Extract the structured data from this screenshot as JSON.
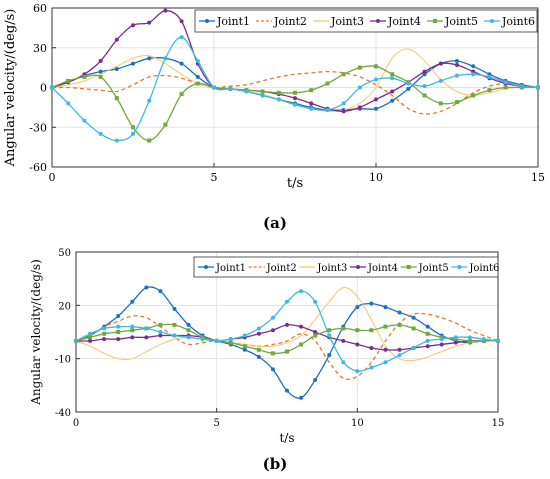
{
  "chart_data": [
    {
      "type": "line",
      "panel_label": "(a)",
      "xlabel": "t/s",
      "ylabel": "Angular velocity/(deg/s)",
      "xlim": [
        0,
        15
      ],
      "ylim": [
        -60,
        60
      ],
      "xticks": [
        0,
        5,
        10,
        15
      ],
      "yticks": [
        -60,
        -30,
        0,
        30,
        60
      ],
      "grid": true,
      "legend": "top-right, horizontal",
      "x": [
        0,
        0.5,
        1,
        1.5,
        2,
        2.5,
        3,
        3.5,
        4,
        4.5,
        5,
        5.5,
        6,
        6.5,
        7,
        7.5,
        8,
        8.5,
        9,
        9.5,
        10,
        10.5,
        11,
        11.5,
        12,
        12.5,
        13,
        13.5,
        14,
        14.5,
        15
      ],
      "series": [
        {
          "name": "Joint1",
          "color": "#1f6fbf",
          "style": "solid-dots",
          "values": [
            0,
            4,
            9,
            12,
            14,
            18,
            22,
            22,
            18,
            8,
            0,
            -1,
            -3,
            -6,
            -9,
            -12,
            -15,
            -17,
            -17,
            -16,
            -16,
            -10,
            -1,
            10,
            18,
            20,
            16,
            10,
            5,
            2,
            0
          ]
        },
        {
          "name": "Joint2",
          "color": "#e8772e",
          "style": "dashed",
          "values": [
            0,
            0,
            -1,
            -2,
            -3,
            2,
            8,
            9,
            7,
            3,
            0,
            1,
            2,
            5,
            8,
            10,
            11,
            12,
            11,
            8,
            2,
            -6,
            -16,
            -20,
            -18,
            -12,
            -4,
            1,
            3,
            1,
            0
          ]
        },
        {
          "name": "Joint3",
          "color": "#f7c66b",
          "style": "solid-thin",
          "values": [
            0,
            2,
            5,
            10,
            16,
            22,
            24,
            18,
            10,
            3,
            0,
            -1,
            -3,
            -5,
            -9,
            -13,
            -16,
            -18,
            -17,
            -12,
            0,
            22,
            29,
            20,
            6,
            -3,
            -6,
            -4,
            -1,
            0,
            0
          ]
        },
        {
          "name": "Joint4",
          "color": "#7b2d8e",
          "style": "solid-dots",
          "values": [
            0,
            4,
            10,
            20,
            36,
            47,
            49,
            58,
            50,
            18,
            0,
            -1,
            -2,
            -3,
            -5,
            -8,
            -12,
            -16,
            -18,
            -15,
            -9,
            -3,
            4,
            12,
            18,
            17,
            12,
            7,
            3,
            1,
            0
          ]
        },
        {
          "name": "Joint5",
          "color": "#6fa83c",
          "style": "solid-squares",
          "values": [
            0,
            5,
            8,
            8,
            -8,
            -30,
            -40,
            -28,
            -5,
            3,
            0,
            -1,
            -2,
            -3,
            -4,
            -4,
            -2,
            3,
            10,
            15,
            16,
            10,
            4,
            -6,
            -12,
            -11,
            -6,
            -2,
            0,
            0,
            0
          ]
        },
        {
          "name": "Joint6",
          "color": "#3fb7e6",
          "style": "solid-dots",
          "values": [
            0,
            -12,
            -25,
            -35,
            -40,
            -35,
            -10,
            22,
            38,
            20,
            0,
            -1,
            -3,
            -6,
            -9,
            -13,
            -16,
            -17,
            -12,
            0,
            6,
            7,
            3,
            1,
            5,
            9,
            10,
            8,
            4,
            1,
            0
          ]
        }
      ]
    },
    {
      "type": "line",
      "panel_label": "(b)",
      "xlabel": "t/s",
      "ylabel": "Angular velocity/(deg/s)",
      "xlim": [
        0,
        15
      ],
      "ylim": [
        -40,
        50
      ],
      "xticks": [
        0,
        5,
        10,
        15
      ],
      "yticks": [
        -40,
        -10,
        20,
        50
      ],
      "grid": true,
      "legend": "top-right, horizontal",
      "x": [
        0,
        0.5,
        1,
        1.5,
        2,
        2.5,
        3,
        3.5,
        4,
        4.5,
        5,
        5.5,
        6,
        6.5,
        7,
        7.5,
        8,
        8.5,
        9,
        9.5,
        10,
        10.5,
        11,
        11.5,
        12,
        12.5,
        13,
        13.5,
        14,
        14.5,
        15
      ],
      "series": [
        {
          "name": "Joint1",
          "color": "#1f6fbf",
          "style": "solid-dots",
          "values": [
            0,
            3,
            8,
            14,
            22,
            30,
            28,
            18,
            9,
            3,
            0,
            -2,
            -5,
            -9,
            -16,
            -28,
            -32,
            -22,
            -8,
            8,
            19,
            21,
            19,
            16,
            13,
            8,
            3,
            0,
            -1,
            0,
            0
          ]
        },
        {
          "name": "Joint2",
          "color": "#e8772e",
          "style": "dashed",
          "values": [
            0,
            3,
            8,
            11,
            14,
            13,
            8,
            2,
            -2,
            -1,
            0,
            -1,
            -2,
            -3,
            -2,
            0,
            4,
            0,
            -12,
            -21,
            -20,
            -12,
            0,
            10,
            15,
            15,
            13,
            10,
            6,
            3,
            0
          ]
        },
        {
          "name": "Joint3",
          "color": "#f7c66b",
          "style": "solid-thin",
          "values": [
            0,
            -3,
            -7,
            -10,
            -10,
            -6,
            -2,
            1,
            2,
            1,
            0,
            -1,
            -2,
            -3,
            -3,
            -1,
            3,
            12,
            22,
            30,
            25,
            12,
            -3,
            -10,
            -11,
            -9,
            -6,
            -3,
            -1,
            0,
            0
          ]
        },
        {
          "name": "Joint4",
          "color": "#7b2d8e",
          "style": "solid-dots",
          "values": [
            0,
            0,
            1,
            1,
            2,
            2,
            3,
            3,
            3,
            2,
            0,
            1,
            2,
            4,
            6,
            9,
            8,
            5,
            2,
            0,
            -2,
            -4,
            -5,
            -5,
            -4,
            -3,
            -2,
            -1,
            0,
            0,
            0
          ]
        },
        {
          "name": "Joint5",
          "color": "#6fa83c",
          "style": "solid-squares",
          "values": [
            0,
            2,
            4,
            5,
            6,
            7,
            9,
            9,
            6,
            2,
            0,
            -1,
            -3,
            -5,
            -7,
            -6,
            -2,
            3,
            6,
            7,
            6,
            6,
            8,
            9,
            7,
            4,
            2,
            1,
            0,
            0,
            0
          ]
        },
        {
          "name": "Joint6",
          "color": "#3fb7e6",
          "style": "solid-dots",
          "values": [
            0,
            4,
            7,
            8,
            8,
            7,
            5,
            3,
            2,
            1,
            0,
            1,
            3,
            7,
            13,
            22,
            28,
            22,
            3,
            -12,
            -17,
            -15,
            -12,
            -8,
            -4,
            0,
            1,
            2,
            2,
            1,
            0
          ]
        }
      ]
    }
  ]
}
